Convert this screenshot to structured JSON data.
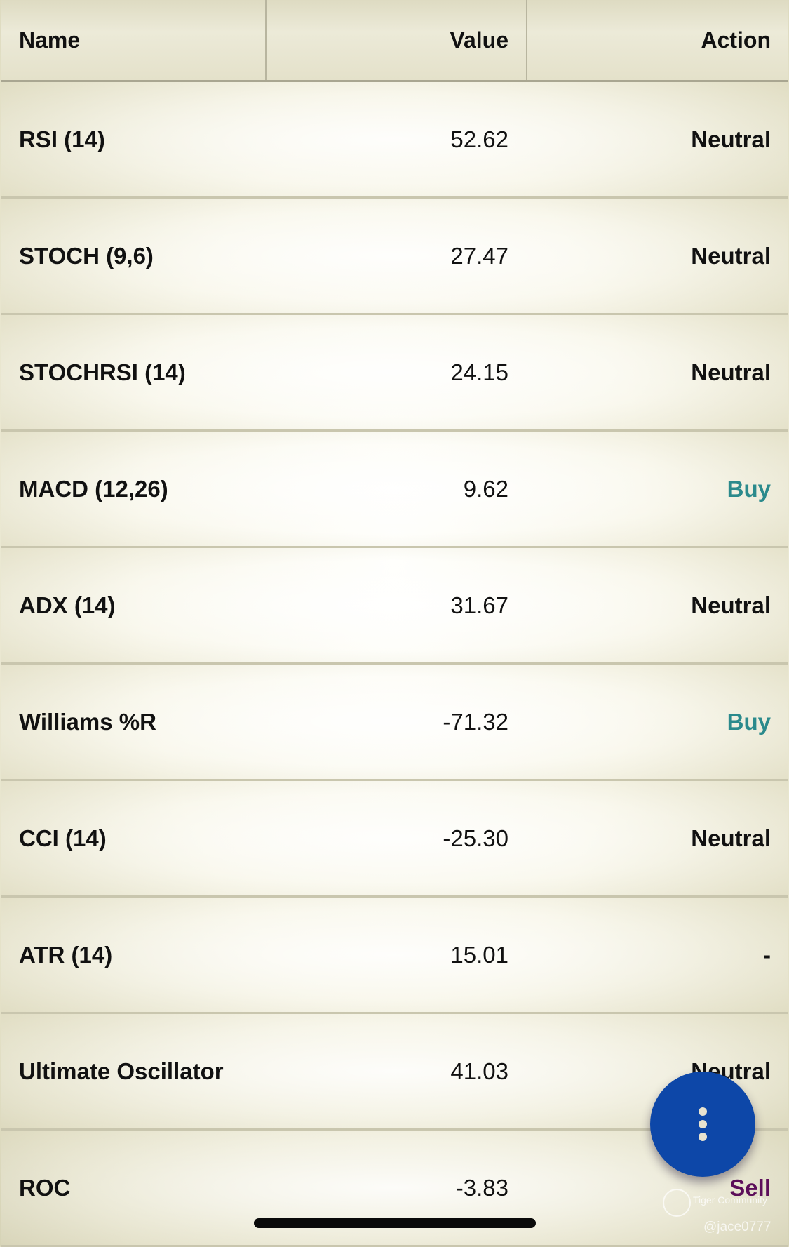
{
  "table": {
    "headers": {
      "name": "Name",
      "value": "Value",
      "action": "Action"
    },
    "rows": [
      {
        "name": "RSI (14)",
        "value": "52.62",
        "action": "Neutral",
        "type": "neutral"
      },
      {
        "name": "STOCH (9,6)",
        "value": "27.47",
        "action": "Neutral",
        "type": "neutral"
      },
      {
        "name": "STOCHRSI (14)",
        "value": "24.15",
        "action": "Neutral",
        "type": "neutral"
      },
      {
        "name": "MACD (12,26)",
        "value": "9.62",
        "action": "Buy",
        "type": "buy"
      },
      {
        "name": "ADX (14)",
        "value": "31.67",
        "action": "Neutral",
        "type": "neutral"
      },
      {
        "name": "Williams %R",
        "value": "-71.32",
        "action": "Buy",
        "type": "buy"
      },
      {
        "name": "CCI (14)",
        "value": "-25.30",
        "action": "Neutral",
        "type": "neutral"
      },
      {
        "name": "ATR (14)",
        "value": "15.01",
        "action": "-",
        "type": "neutral"
      },
      {
        "name": "Ultimate Oscillator",
        "value": "41.03",
        "action": "Neutral",
        "type": "neutral"
      },
      {
        "name": "ROC",
        "value": "-3.83",
        "action": "Sell",
        "type": "sell"
      }
    ]
  },
  "colors": {
    "buy": "#2b8a8c",
    "sell": "#5c0e5a",
    "fab": "#0d47a8"
  },
  "fab": {
    "icon": "more-vertical-icon"
  },
  "watermark": {
    "brand": "Tiger Community",
    "user": "@jace0777"
  }
}
